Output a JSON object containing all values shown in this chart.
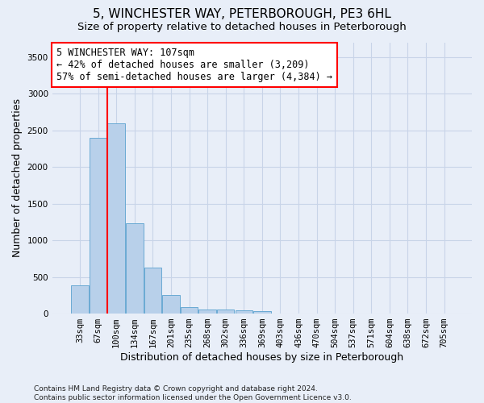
{
  "title": "5, WINCHESTER WAY, PETERBOROUGH, PE3 6HL",
  "subtitle": "Size of property relative to detached houses in Peterborough",
  "xlabel": "Distribution of detached houses by size in Peterborough",
  "ylabel": "Number of detached properties",
  "categories": [
    "33sqm",
    "67sqm",
    "100sqm",
    "134sqm",
    "167sqm",
    "201sqm",
    "235sqm",
    "268sqm",
    "302sqm",
    "336sqm",
    "369sqm",
    "403sqm",
    "436sqm",
    "470sqm",
    "504sqm",
    "537sqm",
    "571sqm",
    "604sqm",
    "638sqm",
    "672sqm",
    "705sqm"
  ],
  "bar_heights": [
    390,
    2400,
    2600,
    1230,
    630,
    255,
    90,
    60,
    55,
    45,
    30,
    0,
    0,
    0,
    0,
    0,
    0,
    0,
    0,
    0,
    0
  ],
  "bar_color": "#b8d0ea",
  "bar_edge_color": "#6aaad4",
  "grid_color": "#c8d4e8",
  "background_color": "#e8eef8",
  "vline_x_index": 2,
  "vline_color": "red",
  "annotation_text": "5 WINCHESTER WAY: 107sqm\n← 42% of detached houses are smaller (3,209)\n57% of semi-detached houses are larger (4,384) →",
  "annotation_box_color": "white",
  "annotation_box_edge": "red",
  "ylim": [
    0,
    3700
  ],
  "yticks": [
    0,
    500,
    1000,
    1500,
    2000,
    2500,
    3000,
    3500
  ],
  "footnote": "Contains HM Land Registry data © Crown copyright and database right 2024.\nContains public sector information licensed under the Open Government Licence v3.0.",
  "title_fontsize": 11,
  "subtitle_fontsize": 9.5,
  "xlabel_fontsize": 9,
  "ylabel_fontsize": 9,
  "tick_fontsize": 7.5,
  "annotation_fontsize": 8.5,
  "footnote_fontsize": 6.5
}
